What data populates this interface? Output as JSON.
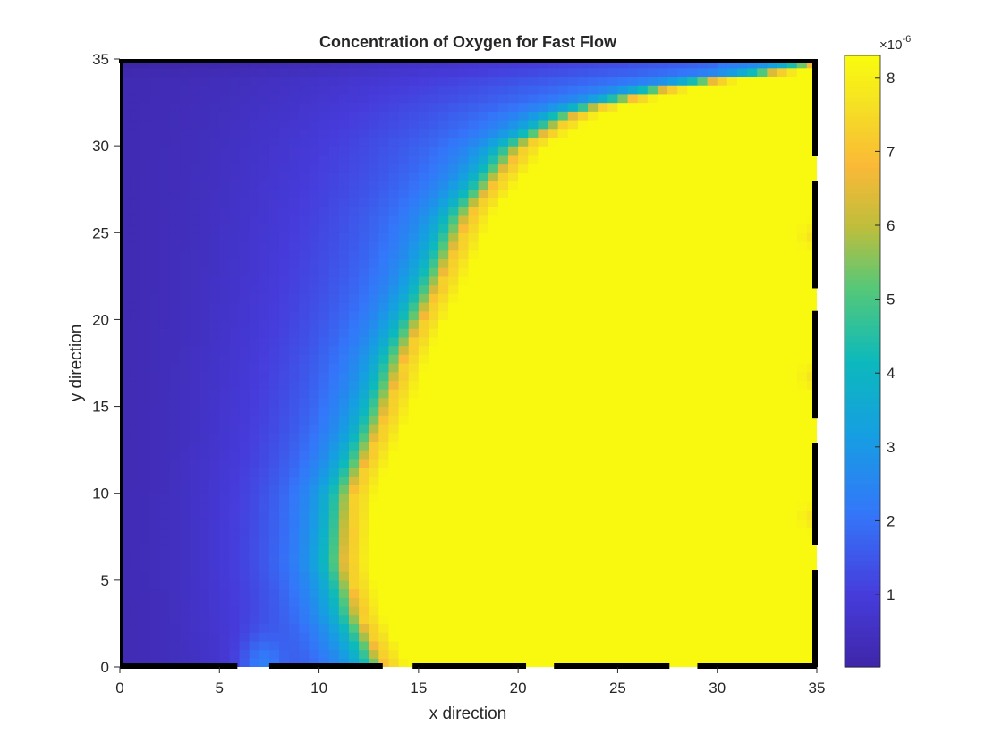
{
  "chart_data": {
    "type": "heatmap",
    "title": "Concentration of Oxygen for Fast Flow",
    "xlabel": "x direction",
    "ylabel": "y direction",
    "xlim": [
      0,
      35
    ],
    "ylim": [
      0,
      35
    ],
    "xticks": [
      0,
      5,
      10,
      15,
      20,
      25,
      30,
      35
    ],
    "yticks": [
      0,
      5,
      10,
      15,
      20,
      25,
      30,
      35
    ],
    "colorbar": {
      "exponent_label": "×10",
      "exponent_power": "-6",
      "ticks": [
        1,
        2,
        3,
        4,
        5,
        6,
        7,
        8
      ],
      "min": 0.02,
      "max": 8.3,
      "colormap": "parula"
    },
    "field_description": "Low concentration on left (~0.3e-6), increasing to right; saturated high (~8.2e-6) region right of a curved front that runs from x≈13.5 at y=0 through x≈11.5 at y=10, x≈15.5 at y=20, x≈21 at y=30 and bending right near y=33.5; a bright spot near the inlet at x≈7, y=0.",
    "wall_segments_bottom": [
      [
        0,
        5.9
      ],
      [
        7.5,
        13.2
      ],
      [
        14.7,
        20.4
      ],
      [
        21.8,
        27.6
      ],
      [
        29.0,
        35.0
      ]
    ],
    "inlet_gaps_bottom": [
      [
        5.9,
        7.5
      ],
      [
        13.2,
        14.7
      ],
      [
        20.4,
        21.8
      ],
      [
        27.6,
        29.0
      ]
    ],
    "wall_segments_right": [
      [
        0,
        5.6
      ],
      [
        7.0,
        12.9
      ],
      [
        14.3,
        20.5
      ],
      [
        21.8,
        28.0
      ],
      [
        29.4,
        35.0
      ]
    ]
  }
}
